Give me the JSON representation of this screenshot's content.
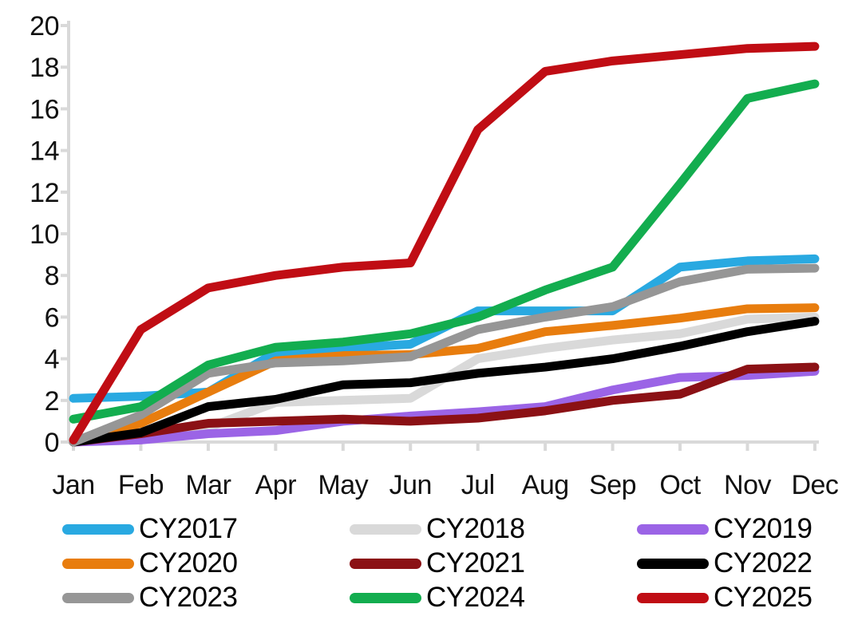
{
  "chart_data": {
    "type": "line",
    "title": "",
    "xlabel": "",
    "ylabel": "",
    "categories": [
      "Jan",
      "Feb",
      "Mar",
      "Apr",
      "May",
      "Jun",
      "Jul",
      "Aug",
      "Sep",
      "Oct",
      "Nov",
      "Dec"
    ],
    "y_axis": {
      "min": 0,
      "max": 20,
      "tick_step": 2,
      "tick_labels": [
        "0",
        "2",
        "4",
        "6",
        "8",
        "10",
        "12",
        "14",
        "16",
        "18",
        "20"
      ]
    },
    "grid": false,
    "legend_position": "bottom",
    "axis_color": "#D9D9D9",
    "label_color": "#111111",
    "series": [
      {
        "name": "CY2017",
        "color": "#29A9E1",
        "values": [
          2.1,
          2.2,
          2.4,
          4.3,
          4.5,
          4.7,
          6.3,
          6.3,
          6.3,
          8.4,
          8.7,
          8.8
        ]
      },
      {
        "name": "CY2018",
        "color": "#D9D9D9",
        "values": [
          0,
          0.3,
          0.7,
          1.9,
          2.0,
          2.1,
          4.0,
          4.5,
          4.9,
          5.2,
          5.9,
          6.0
        ]
      },
      {
        "name": "CY2019",
        "color": "#9B64E6",
        "values": [
          0,
          0.1,
          0.4,
          0.55,
          1.0,
          1.25,
          1.45,
          1.7,
          2.5,
          3.1,
          3.2,
          3.4
        ]
      },
      {
        "name": "CY2020",
        "color": "#E87D0E",
        "values": [
          0,
          0.9,
          2.4,
          3.9,
          4.15,
          4.2,
          4.5,
          5.3,
          5.6,
          5.95,
          6.4,
          6.45
        ]
      },
      {
        "name": "CY2021",
        "color": "#8B1115",
        "values": [
          0,
          0.4,
          0.9,
          1.0,
          1.1,
          1.0,
          1.15,
          1.5,
          2.0,
          2.3,
          3.5,
          3.6
        ]
      },
      {
        "name": "CY2022",
        "color": "#000000",
        "values": [
          0,
          0.45,
          1.7,
          2.05,
          2.75,
          2.85,
          3.3,
          3.6,
          4.0,
          4.6,
          5.3,
          5.8
        ]
      },
      {
        "name": "CY2023",
        "color": "#969696",
        "values": [
          0,
          1.3,
          3.3,
          3.8,
          3.9,
          4.1,
          5.4,
          6.0,
          6.5,
          7.7,
          8.3,
          8.35
        ]
      },
      {
        "name": "CY2024",
        "color": "#13AD4F",
        "values": [
          1.1,
          1.7,
          3.7,
          4.55,
          4.8,
          5.2,
          6.0,
          7.3,
          8.4,
          12.4,
          16.5,
          17.2
        ]
      },
      {
        "name": "CY2025",
        "color": "#C00D14",
        "values": [
          0.1,
          5.4,
          7.4,
          8.0,
          8.4,
          8.6,
          15.0,
          17.8,
          18.3,
          18.6,
          18.9,
          19.0
        ]
      }
    ],
    "legend_items": [
      "CY2017",
      "CY2018",
      "CY2019",
      "CY2020",
      "CY2021",
      "CY2022",
      "CY2023",
      "CY2024",
      "CY2025"
    ]
  }
}
